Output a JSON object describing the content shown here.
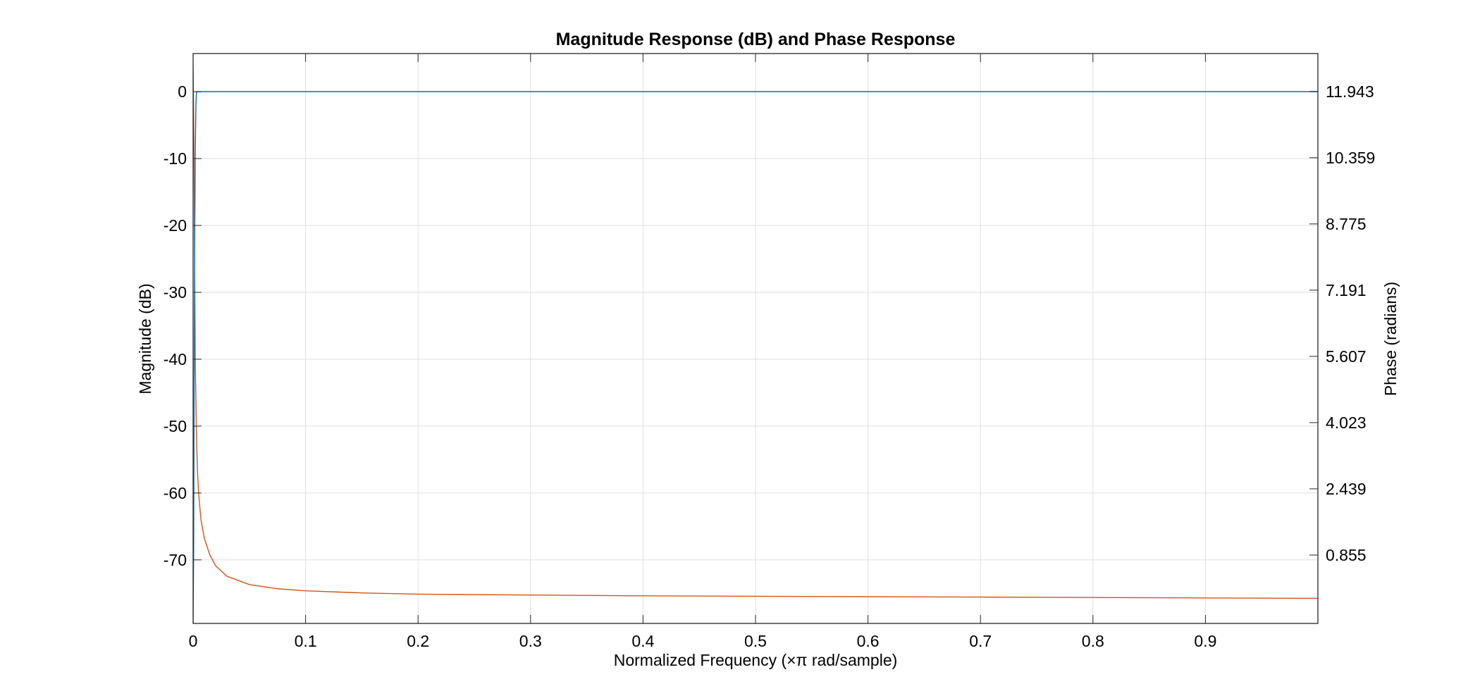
{
  "colors": {
    "magnitude": "#0072BD",
    "phase": "#D95319",
    "grid": "#DFDFDF",
    "axis": "#262626",
    "background": "#FFFFFF"
  },
  "chart_data": {
    "type": "line",
    "title": "Magnitude Response (dB) and Phase Response",
    "xlabel": "Normalized Frequency (×π rad/sample)",
    "ylabel": "Magnitude (dB)",
    "ylabel_right": "Phase (radians)",
    "xlim": [
      0,
      1
    ],
    "ylim": [
      -79.5,
      5.7
    ],
    "ylim_right": [
      -0.78,
      12.85
    ],
    "grid": true,
    "legend": "none",
    "x_ticks": [
      0,
      0.1,
      0.2,
      0.3,
      0.4,
      0.5,
      0.6,
      0.7,
      0.8,
      0.9
    ],
    "x_tick_labels": [
      "0",
      "0.1",
      "0.2",
      "0.3",
      "0.4",
      "0.5",
      "0.6",
      "0.7",
      "0.8",
      "0.9"
    ],
    "y_ticks": [
      0,
      -10,
      -20,
      -30,
      -40,
      -50,
      -60,
      -70
    ],
    "y_tick_labels": [
      "0",
      "-10",
      "-20",
      "-30",
      "-40",
      "-50",
      "-60",
      "-70"
    ],
    "y_ticks_right": [
      11.943,
      10.359,
      8.775,
      7.191,
      5.607,
      4.023,
      2.439,
      0.855
    ],
    "y_tick_labels_right": [
      "11.943",
      "10.359",
      "8.775",
      "7.191",
      "5.607",
      "4.023",
      "2.439",
      "0.855"
    ],
    "series": [
      {
        "axis": "left",
        "color": "#0072BD",
        "x": [
          0,
          0.0005,
          0.001,
          0.0015,
          0.002,
          0.0025,
          0.003,
          0.004,
          0.006,
          0.01,
          0.1,
          0.2,
          0.3,
          0.4,
          0.5,
          0.6,
          0.7,
          0.8,
          0.9,
          1.0
        ],
        "y": [
          -79.5,
          -68,
          -40,
          -20,
          -8,
          -2,
          0,
          0,
          0,
          0,
          0,
          0,
          0,
          0,
          0,
          0,
          0,
          0,
          0,
          0
        ]
      },
      {
        "axis": "right",
        "color": "#D95319",
        "x": [
          0,
          0.0005,
          0.001,
          0.0015,
          0.002,
          0.003,
          0.004,
          0.005,
          0.007,
          0.01,
          0.015,
          0.02,
          0.03,
          0.05,
          0.075,
          0.1,
          0.15,
          0.2,
          0.3,
          0.4,
          0.5,
          0.6,
          0.7,
          0.8,
          0.9,
          1.0
        ],
        "y": [
          12.5,
          11.4,
          9.6,
          7.2,
          5.4,
          3.7,
          2.8,
          2.3,
          1.7,
          1.25,
          0.85,
          0.6,
          0.35,
          0.15,
          0.05,
          0.0,
          -0.05,
          -0.08,
          -0.1,
          -0.12,
          -0.13,
          -0.14,
          -0.15,
          -0.16,
          -0.17,
          -0.18
        ]
      }
    ]
  }
}
